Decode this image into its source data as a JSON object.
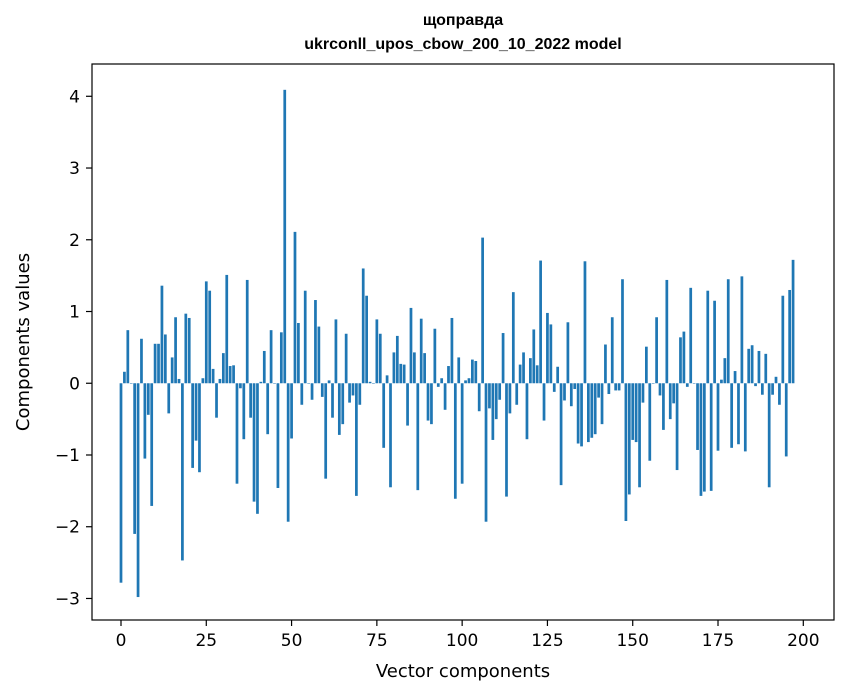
{
  "chart_data": {
    "type": "bar",
    "title_line1": "щоправда",
    "title_line2": "ukrconll_upos_cbow_200_10_2022 model",
    "xlabel": "Vector components",
    "ylabel": "Components values",
    "xlim": [
      -8.5,
      209
    ],
    "ylim": [
      -3.3,
      4.45
    ],
    "x_ticks": [
      0,
      25,
      50,
      75,
      100,
      125,
      150,
      175,
      200
    ],
    "y_ticks": [
      -3,
      -2,
      -1,
      0,
      1,
      2,
      3,
      4
    ],
    "y_tick_labels": [
      "−3",
      "−2",
      "−1",
      "0",
      "1",
      "2",
      "3",
      "4"
    ],
    "bar_color": "#1f77b4",
    "grid": false,
    "values": [
      -2.78,
      0.16,
      0.74,
      0.0,
      -2.1,
      -2.98,
      0.62,
      -1.05,
      -0.44,
      -1.71,
      0.55,
      0.55,
      1.36,
      0.68,
      -0.42,
      0.36,
      0.92,
      0.06,
      -2.47,
      0.97,
      0.91,
      -1.18,
      -0.8,
      -1.24,
      0.07,
      1.42,
      1.29,
      0.2,
      -0.48,
      0.06,
      0.42,
      1.51,
      0.24,
      0.25,
      -1.4,
      -0.07,
      -0.78,
      1.44,
      -0.48,
      -1.65,
      -1.82,
      0.02,
      0.45,
      -0.71,
      0.74,
      0.0,
      -1.46,
      0.71,
      4.09,
      -1.93,
      -0.77,
      2.11,
      0.84,
      -0.3,
      1.29,
      0.0,
      -0.23,
      1.16,
      0.79,
      -0.19,
      -1.33,
      0.04,
      -0.48,
      0.89,
      -0.72,
      -0.57,
      0.69,
      -0.27,
      -0.17,
      -1.57,
      -0.3,
      1.6,
      1.22,
      0.02,
      0.0,
      0.89,
      0.69,
      -0.9,
      0.11,
      -1.45,
      0.43,
      0.66,
      0.27,
      0.26,
      -0.59,
      1.05,
      0.43,
      -1.49,
      0.9,
      0.42,
      -0.52,
      -0.57,
      0.76,
      -0.05,
      0.07,
      -0.37,
      0.24,
      0.91,
      -1.61,
      0.36,
      -1.4,
      0.04,
      0.07,
      0.33,
      0.31,
      -0.39,
      2.03,
      -1.93,
      -0.35,
      -0.79,
      -0.5,
      -0.23,
      0.7,
      -1.58,
      -0.42,
      1.27,
      -0.3,
      0.26,
      0.43,
      -0.78,
      0.35,
      0.75,
      0.25,
      1.71,
      -0.52,
      0.98,
      0.82,
      -0.12,
      0.23,
      -1.42,
      -0.24,
      0.85,
      -0.32,
      -0.08,
      -0.84,
      -0.88,
      1.7,
      -0.82,
      -0.76,
      -0.71,
      -0.2,
      -0.57,
      0.54,
      -0.15,
      0.92,
      -0.1,
      -0.1,
      1.45,
      -1.92,
      -1.55,
      -0.79,
      -0.82,
      -1.45,
      -0.27,
      0.51,
      -1.08,
      0.0,
      0.92,
      -0.17,
      -0.65,
      1.44,
      -0.5,
      -0.28,
      -1.21,
      0.64,
      0.72,
      -0.05,
      1.33,
      0.0,
      -0.93,
      -1.57,
      -1.51,
      1.29,
      -1.5,
      1.15,
      -0.94,
      0.05,
      0.35,
      1.45,
      -0.9,
      0.17,
      -0.85,
      1.49,
      -0.95,
      0.48,
      0.53,
      -0.04,
      0.45,
      -0.16,
      0.41,
      -1.45,
      -0.16,
      0.09,
      -0.3,
      1.22,
      -1.02,
      1.3,
      1.72
    ]
  }
}
